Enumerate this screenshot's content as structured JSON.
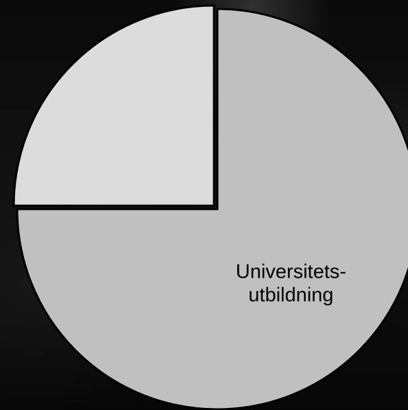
{
  "chart_data": {
    "type": "pie",
    "slices": [
      {
        "label_lines": [
          "Universitets-",
          "utbildning"
        ],
        "value": 75,
        "color": "#c0c0c0",
        "exploded": false
      },
      {
        "label_lines": [],
        "value": 25,
        "color": "#dcdcdc",
        "exploded": true
      }
    ],
    "start_angle_deg": 0,
    "direction": "clockwise",
    "slice_border_color": "#000000",
    "legend": "none",
    "title": ""
  }
}
